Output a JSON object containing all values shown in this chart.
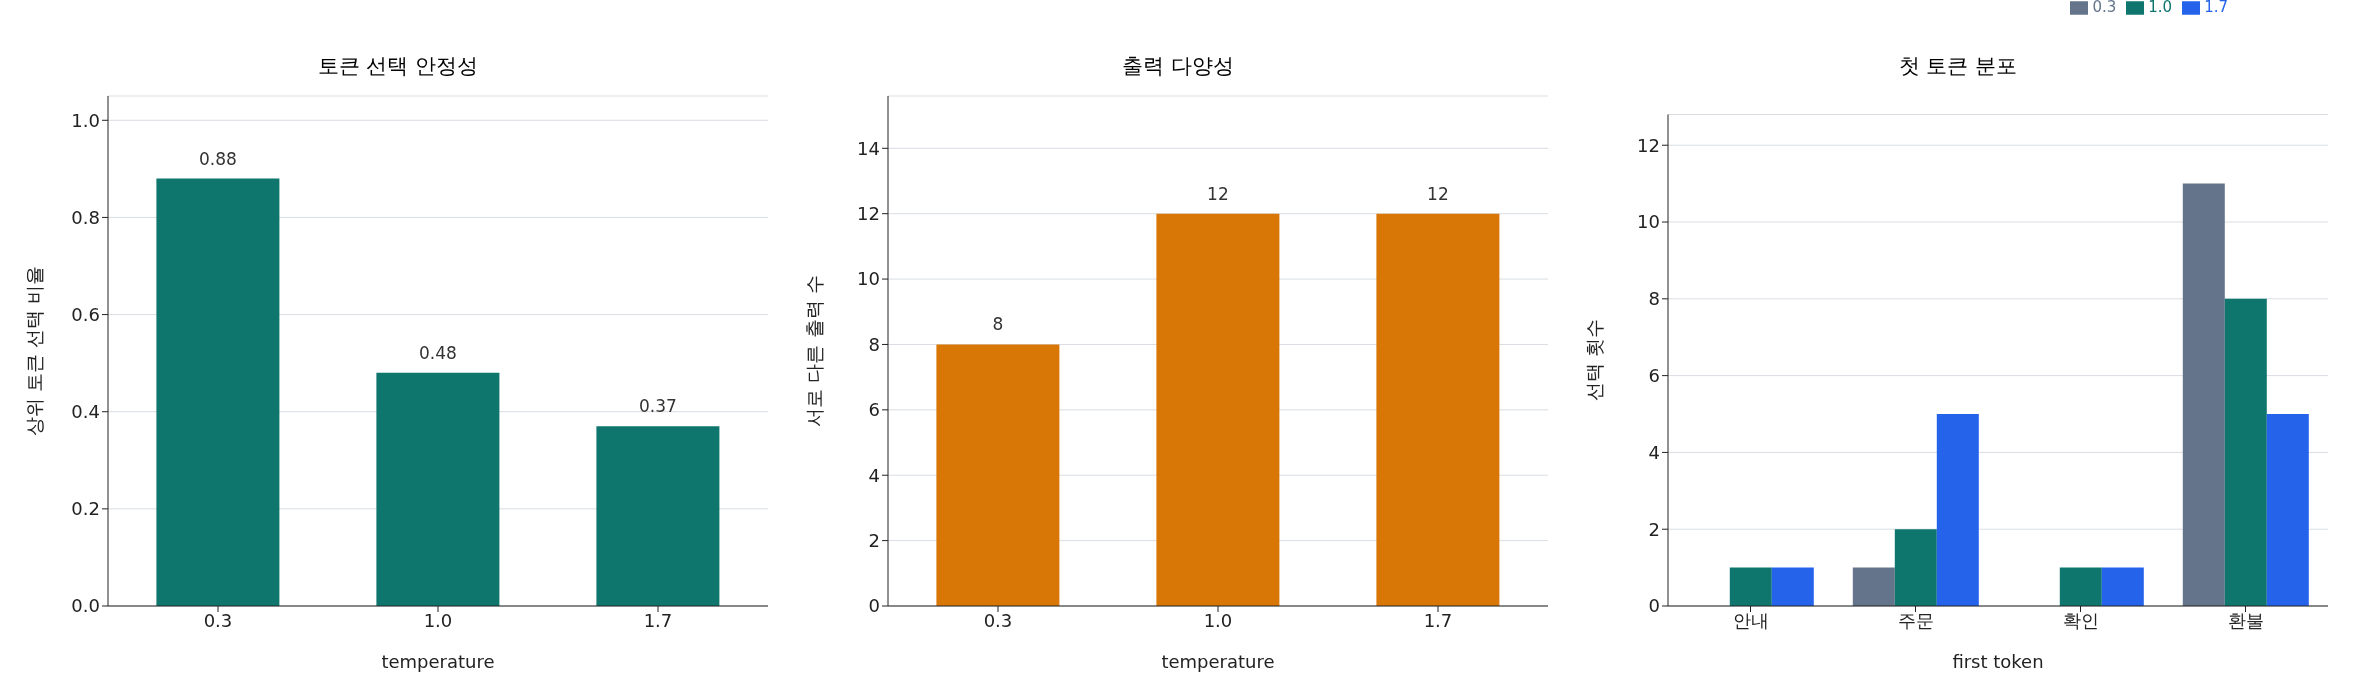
{
  "chart_data": [
    {
      "type": "bar",
      "title": "토큰 선택 안정성",
      "xlabel": "temperature",
      "ylabel": "상위 토큰 선택 비율",
      "categories": [
        "0.3",
        "1.0",
        "1.7"
      ],
      "values": [
        0.88,
        0.48,
        0.37
      ],
      "color": "#0f766e",
      "ylim": [
        0,
        1.05
      ],
      "yticks": [
        {
          "value": 0,
          "label": "0.0"
        },
        0.2,
        0.4,
        0.6,
        0.8,
        {
          "value": 1,
          "label": "1.0"
        }
      ],
      "grid": "y",
      "data_labels": true
    },
    {
      "type": "bar",
      "title": "출력 다양성",
      "xlabel": "temperature",
      "ylabel": "서로 다른 출력 수",
      "categories": [
        "0.3",
        "1.0",
        "1.7"
      ],
      "values": [
        8,
        12,
        12
      ],
      "color": "#d97706",
      "ylim": [
        0,
        15.6
      ],
      "yticks": [
        0,
        2,
        4,
        6,
        8,
        10,
        12,
        14
      ],
      "grid": "y",
      "data_labels": true
    },
    {
      "type": "bar",
      "title": "첫 토큰 분포",
      "xlabel": "first token",
      "ylabel": "선택 횟수",
      "categories": [
        "안내",
        "주문",
        "확인",
        "환불"
      ],
      "series": [
        {
          "name": "0.3",
          "color": "#64748b",
          "values": [
            0,
            1,
            0,
            11
          ]
        },
        {
          "name": "1.0",
          "color": "#0f766e",
          "values": [
            1,
            2,
            1,
            8
          ]
        },
        {
          "name": "1.7",
          "color": "#2563eb",
          "values": [
            1,
            5,
            1,
            5
          ]
        }
      ],
      "ylim": [
        0,
        12.8
      ],
      "yticks": [
        0,
        2,
        4,
        6,
        8,
        10,
        12
      ],
      "grid": "y",
      "legend": "top right"
    }
  ]
}
